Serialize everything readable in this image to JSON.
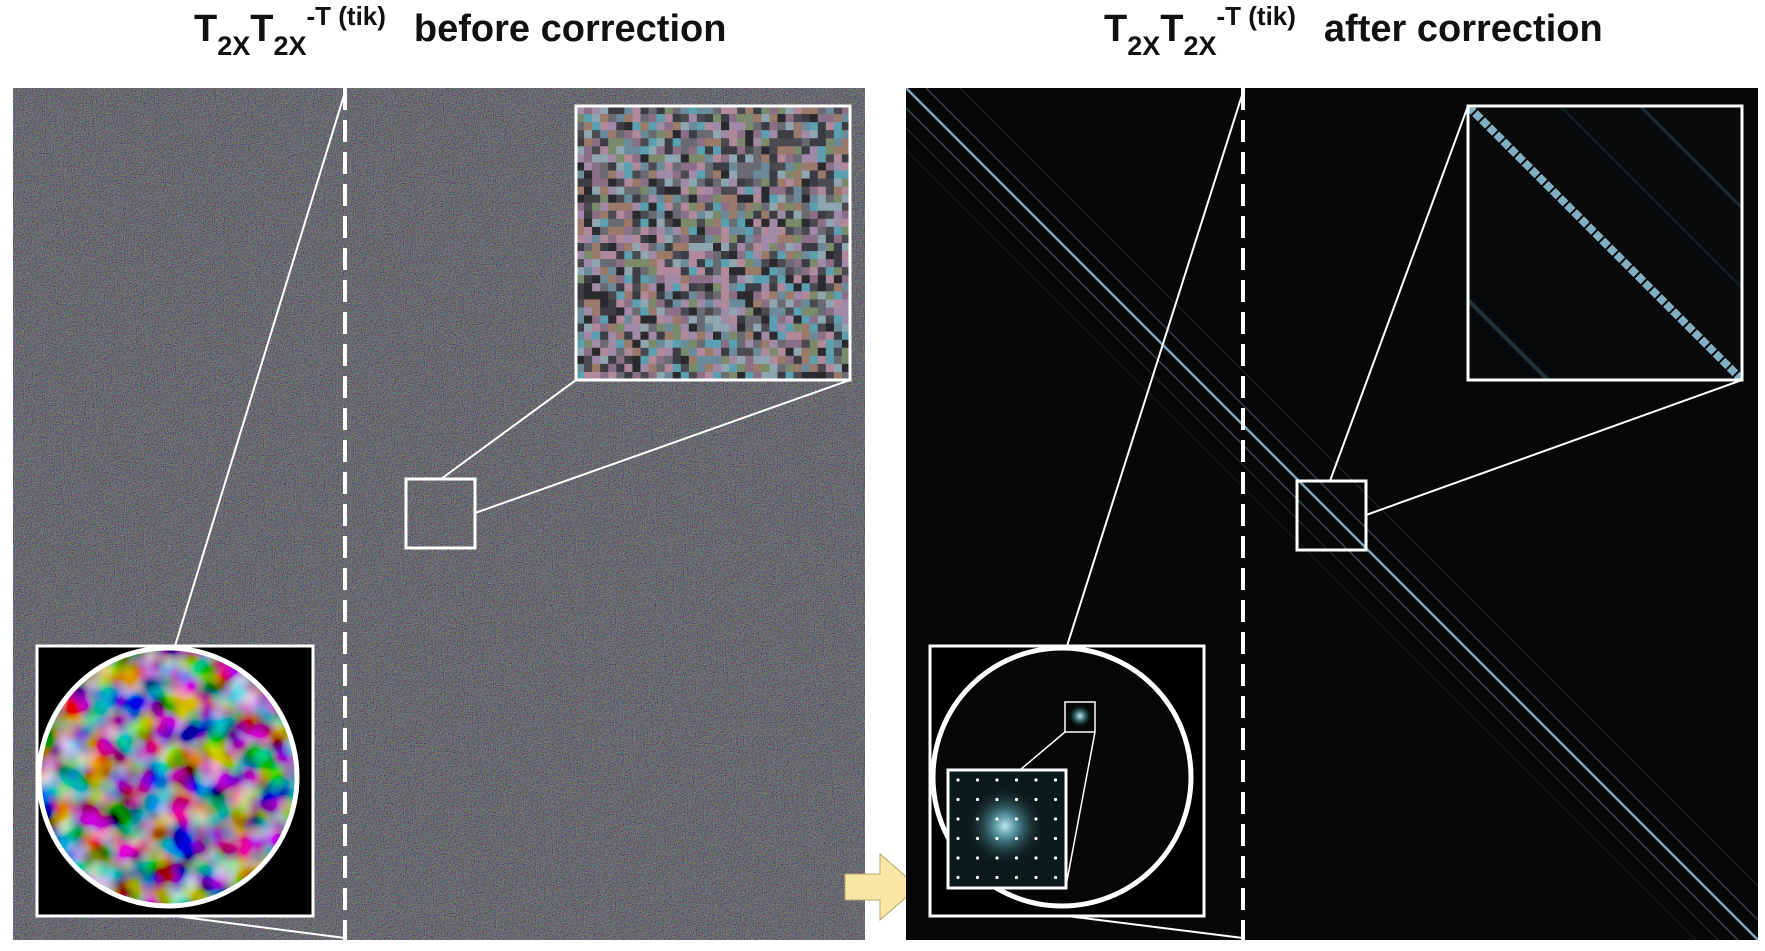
{
  "panels": [
    {
      "matrix_symbol": "T",
      "subscript": "2X",
      "superscript": "-T (tik)",
      "caption": "before correction"
    },
    {
      "matrix_symbol": "T",
      "subscript": "2X",
      "superscript": "-T (tik)",
      "caption": "after correction"
    }
  ],
  "colors": {
    "noise_background": "#3a3a3c",
    "dark_background": "#070707",
    "diagonal": "#8fc3d6",
    "arrow_fill": "#f7e6a6",
    "frame": "#ffffff"
  }
}
